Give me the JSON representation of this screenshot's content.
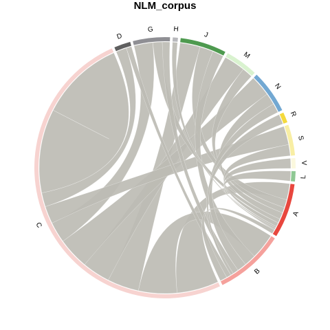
{
  "title": "NLM_corpus",
  "chord_diagram": {
    "type": "chord",
    "ribbon_color": "#bdbcb4",
    "sectors": [
      {
        "name": "C",
        "color": "#f7d3d0",
        "fraction": 0.395
      },
      {
        "name": "D",
        "color": "#5f5f5f",
        "fraction": 0.016
      },
      {
        "name": "G",
        "color": "#8f8f94",
        "fraction": 0.036
      },
      {
        "name": "H",
        "color": "#b8b8bc",
        "fraction": 0.005
      },
      {
        "name": "J",
        "color": "#4e9a4f",
        "fraction": 0.045
      },
      {
        "name": "M",
        "color": "#d9f2cf",
        "fraction": 0.032
      },
      {
        "name": "N",
        "color": "#72a8d2",
        "fraction": 0.042
      },
      {
        "name": "R",
        "color": "#f4d93c",
        "fraction": 0.01
      },
      {
        "name": "S",
        "color": "#f8eea4",
        "fraction": 0.03
      },
      {
        "name": "V",
        "color": "#fbf8de",
        "fraction": 0.01
      },
      {
        "name": "L",
        "color": "#8fc894",
        "fraction": 0.01
      },
      {
        "name": "A",
        "color": "#e8473e",
        "fraction": 0.053
      },
      {
        "name": "B",
        "color": "#f5a19c",
        "fraction": 0.068
      }
    ],
    "links": [
      {
        "from": "C",
        "to": "A",
        "weight": 0.6
      },
      {
        "from": "C",
        "to": "B",
        "weight": 0.55
      },
      {
        "from": "C",
        "to": "J",
        "weight": 0.45
      },
      {
        "from": "C",
        "to": "M",
        "weight": 0.4
      },
      {
        "from": "C",
        "to": "N",
        "weight": 0.45
      },
      {
        "from": "C",
        "to": "G",
        "weight": 0.3
      },
      {
        "from": "C",
        "to": "S",
        "weight": 0.25
      },
      {
        "from": "C",
        "to": "D",
        "weight": 0.2
      },
      {
        "from": "C",
        "to": "C",
        "weight": 1.2
      },
      {
        "from": "J",
        "to": "A",
        "weight": 0.3
      },
      {
        "from": "J",
        "to": "B",
        "weight": 0.25
      },
      {
        "from": "M",
        "to": "A",
        "weight": 0.2
      },
      {
        "from": "N",
        "to": "A",
        "weight": 0.25
      },
      {
        "from": "N",
        "to": "B",
        "weight": 0.2
      },
      {
        "from": "G",
        "to": "A",
        "weight": 0.15
      },
      {
        "from": "G",
        "to": "B",
        "weight": 0.12
      },
      {
        "from": "S",
        "to": "A",
        "weight": 0.15
      },
      {
        "from": "R",
        "to": "B",
        "weight": 0.06
      },
      {
        "from": "V",
        "to": "A",
        "weight": 0.06
      },
      {
        "from": "L",
        "to": "A",
        "weight": 0.06
      },
      {
        "from": "D",
        "to": "B",
        "weight": 0.1
      },
      {
        "from": "H",
        "to": "A",
        "weight": 0.03
      },
      {
        "from": "A",
        "to": "B",
        "weight": 0.15
      }
    ]
  }
}
